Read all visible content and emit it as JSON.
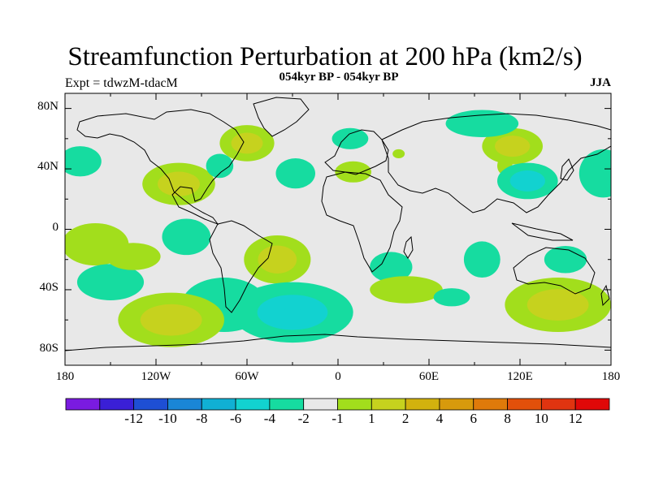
{
  "title": "Streamfunction Perturbation at 200 hPa (km2/s)",
  "subtitle": "054kyr BP - 054kyr BP",
  "left_label": "Expt = tdwzM-tdacM",
  "right_label": "JJA",
  "lat_ticks": [
    "80N",
    "40N",
    "0",
    "40S",
    "80S"
  ],
  "lon_ticks": [
    "180",
    "120W",
    "60W",
    "0",
    "60E",
    "120E",
    "180"
  ],
  "colorbar": {
    "colors": [
      "#7a1be0",
      "#3a1fd6",
      "#1e4fd4",
      "#1a86d6",
      "#10b0d4",
      "#12d2d0",
      "#16dca0",
      "#e8e8e8",
      "#a2de1c",
      "#c6d21e",
      "#d2b20e",
      "#d89a0c",
      "#df7a0a",
      "#e2500a",
      "#e03410",
      "#e00808"
    ],
    "labels": [
      "-12",
      "-10",
      "-8",
      "-6",
      "-4",
      "-2",
      "-1",
      "1",
      "2",
      "4",
      "6",
      "8",
      "10",
      "12"
    ]
  },
  "blobs": [
    {
      "lon": 115,
      "lat": 55,
      "rx": 20,
      "ry": 12,
      "levels": [
        1,
        2
      ]
    },
    {
      "lon": -170,
      "lat": 45,
      "rx": 14,
      "ry": 10,
      "levels": [
        -1
      ]
    },
    {
      "lon": -105,
      "lat": 30,
      "rx": 24,
      "ry": 14,
      "levels": [
        1,
        2
      ]
    },
    {
      "lon": -60,
      "lat": 57,
      "rx": 18,
      "ry": 12,
      "levels": [
        1,
        2
      ]
    },
    {
      "lon": -78,
      "lat": 42,
      "rx": 9,
      "ry": 8,
      "levels": [
        -1
      ]
    },
    {
      "lon": -28,
      "lat": 37,
      "rx": 13,
      "ry": 10,
      "levels": [
        -1
      ]
    },
    {
      "lon": 8,
      "lat": 60,
      "rx": 12,
      "ry": 7,
      "levels": [
        -1
      ]
    },
    {
      "lon": 10,
      "lat": 38,
      "rx": 12,
      "ry": 7,
      "levels": [
        1
      ]
    },
    {
      "lon": 40,
      "lat": 50,
      "rx": 4,
      "ry": 3,
      "levels": [
        1
      ]
    },
    {
      "lon": 95,
      "lat": 70,
      "rx": 24,
      "ry": 9,
      "levels": [
        -1
      ]
    },
    {
      "lon": 110,
      "lat": 42,
      "rx": 5,
      "ry": 6,
      "levels": [
        1
      ]
    },
    {
      "lon": 125,
      "lat": 32,
      "rx": 20,
      "ry": 12,
      "levels": [
        -1,
        -2
      ]
    },
    {
      "lon": 175,
      "lat": 37,
      "rx": 16,
      "ry": 16,
      "levels": [
        -1
      ]
    },
    {
      "lon": -160,
      "lat": -10,
      "rx": 22,
      "ry": 14,
      "levels": [
        1
      ]
    },
    {
      "lon": -100,
      "lat": -5,
      "rx": 16,
      "ry": 12,
      "levels": [
        -1
      ]
    },
    {
      "lon": -150,
      "lat": -35,
      "rx": 22,
      "ry": 12,
      "levels": [
        -1
      ]
    },
    {
      "lon": -135,
      "lat": -18,
      "rx": 18,
      "ry": 9,
      "levels": [
        1
      ]
    },
    {
      "lon": -40,
      "lat": -20,
      "rx": 22,
      "ry": 16,
      "levels": [
        1,
        2
      ]
    },
    {
      "lon": -75,
      "lat": -50,
      "rx": 28,
      "ry": 18,
      "levels": [
        -1
      ]
    },
    {
      "lon": -30,
      "lat": -55,
      "rx": 40,
      "ry": 20,
      "levels": [
        -1,
        -2,
        -4
      ]
    },
    {
      "lon": -110,
      "lat": -60,
      "rx": 35,
      "ry": 18,
      "levels": [
        1,
        2
      ]
    },
    {
      "lon": 35,
      "lat": -25,
      "rx": 14,
      "ry": 10,
      "levels": [
        -1
      ]
    },
    {
      "lon": 45,
      "lat": -40,
      "rx": 24,
      "ry": 9,
      "levels": [
        1
      ]
    },
    {
      "lon": 75,
      "lat": -45,
      "rx": 12,
      "ry": 6,
      "levels": [
        -1
      ]
    },
    {
      "lon": 95,
      "lat": -20,
      "rx": 12,
      "ry": 12,
      "levels": [
        -1
      ]
    },
    {
      "lon": 150,
      "lat": -20,
      "rx": 14,
      "ry": 9,
      "levels": [
        -1
      ]
    },
    {
      "lon": 145,
      "lat": -50,
      "rx": 35,
      "ry": 18,
      "levels": [
        1,
        2
      ]
    }
  ]
}
